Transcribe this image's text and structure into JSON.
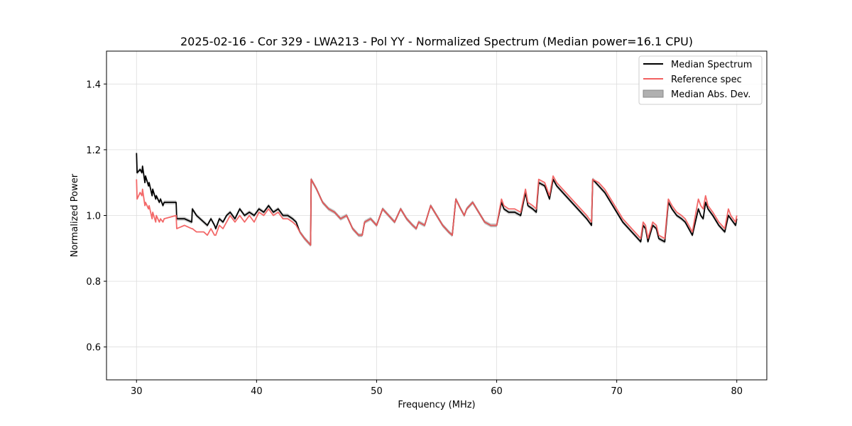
{
  "chart_data": {
    "type": "line",
    "title": "2025-02-16 - Cor 329 - LWA213 - Pol YY - Normalized Spectrum (Median power=16.1 CPU)",
    "xlabel": "Frequency (MHz)",
    "ylabel": "Normalized Power",
    "xlim": [
      27.5,
      82.5
    ],
    "ylim": [
      0.5,
      1.5
    ],
    "xticks": [
      30,
      40,
      50,
      60,
      70,
      80
    ],
    "xtick_labels": [
      "30",
      "40",
      "50",
      "60",
      "70",
      "80"
    ],
    "yticks": [
      0.6,
      0.8,
      1.0,
      1.2,
      1.4
    ],
    "ytick_labels": [
      "0.6",
      "0.8",
      "1.0",
      "1.2",
      "1.4"
    ],
    "grid": true,
    "legend_position": "top-right",
    "series": [
      {
        "name": "Median Spectrum",
        "color": "#000000",
        "x": [
          30.0,
          30.05,
          30.3,
          30.45,
          30.5,
          30.7,
          30.75,
          31.0,
          31.05,
          31.3,
          31.35,
          31.6,
          31.65,
          31.9,
          32.0,
          32.2,
          32.3,
          33.3,
          33.35,
          34.0,
          34.6,
          34.65,
          35.0,
          35.6,
          35.9,
          36.2,
          36.5,
          36.6,
          36.9,
          37.2,
          37.5,
          37.8,
          38.2,
          38.6,
          39.0,
          39.4,
          39.8,
          40.2,
          40.6,
          41.0,
          41.4,
          41.8,
          42.2,
          42.6,
          43.0,
          43.3,
          43.6,
          44.0,
          44.5,
          44.55,
          45.0,
          45.5,
          46.0,
          46.5,
          47.0,
          47.5,
          48.0,
          48.5,
          48.8,
          49.0,
          49.5,
          50.0,
          50.5,
          51.0,
          51.5,
          52.0,
          52.5,
          53.0,
          53.3,
          53.5,
          54.0,
          54.5,
          55.0,
          55.5,
          56.0,
          56.3,
          56.6,
          57.0,
          57.3,
          57.5,
          58.0,
          58.5,
          59.0,
          59.5,
          60.0,
          60.4,
          60.6,
          61.0,
          61.5,
          62.0,
          62.4,
          62.6,
          63.0,
          63.3,
          63.5,
          64.0,
          64.4,
          64.7,
          65.0,
          65.5,
          66.0,
          66.5,
          67.0,
          67.5,
          67.9,
          68.0,
          68.5,
          69.0,
          69.5,
          70.0,
          70.5,
          71.0,
          71.5,
          72.0,
          72.2,
          72.4,
          72.6,
          73.0,
          73.3,
          73.5,
          74.0,
          74.3,
          74.6,
          75.0,
          75.4,
          75.7,
          76.0,
          76.3,
          76.8,
          77.0,
          77.2,
          77.4,
          77.6,
          78.0,
          78.5,
          79.0,
          79.3,
          79.5,
          79.9,
          80.0
        ],
        "y": [
          1.19,
          1.13,
          1.14,
          1.13,
          1.15,
          1.1,
          1.12,
          1.09,
          1.1,
          1.06,
          1.08,
          1.05,
          1.06,
          1.04,
          1.05,
          1.03,
          1.04,
          1.04,
          0.99,
          0.99,
          0.98,
          1.02,
          1.0,
          0.98,
          0.97,
          0.99,
          0.97,
          0.96,
          0.99,
          0.98,
          1.0,
          1.01,
          0.99,
          1.02,
          1.0,
          1.01,
          1.0,
          1.02,
          1.01,
          1.03,
          1.01,
          1.02,
          1.0,
          1.0,
          0.99,
          0.98,
          0.95,
          0.93,
          0.91,
          1.11,
          1.08,
          1.04,
          1.02,
          1.01,
          0.99,
          1.0,
          0.96,
          0.94,
          0.94,
          0.98,
          0.99,
          0.97,
          1.02,
          1.0,
          0.98,
          1.02,
          0.99,
          0.97,
          0.96,
          0.98,
          0.97,
          1.03,
          1.0,
          0.97,
          0.95,
          0.94,
          1.05,
          1.02,
          1.0,
          1.02,
          1.04,
          1.01,
          0.98,
          0.97,
          0.97,
          1.04,
          1.02,
          1.01,
          1.01,
          1.0,
          1.07,
          1.03,
          1.02,
          1.01,
          1.1,
          1.09,
          1.05,
          1.11,
          1.09,
          1.07,
          1.05,
          1.03,
          1.01,
          0.99,
          0.97,
          1.11,
          1.09,
          1.07,
          1.04,
          1.01,
          0.98,
          0.96,
          0.94,
          0.92,
          0.97,
          0.96,
          0.92,
          0.97,
          0.96,
          0.93,
          0.92,
          1.04,
          1.02,
          1.0,
          0.99,
          0.98,
          0.96,
          0.94,
          1.02,
          1.0,
          0.99,
          1.04,
          1.02,
          1.0,
          0.97,
          0.95,
          1.0,
          0.99,
          0.97,
          0.99
        ]
      },
      {
        "name": "Reference spec",
        "color": "#f26060",
        "x": [
          30.0,
          30.05,
          30.3,
          30.45,
          30.5,
          30.7,
          30.75,
          31.0,
          31.05,
          31.3,
          31.35,
          31.6,
          31.65,
          31.9,
          32.0,
          32.2,
          32.3,
          33.3,
          33.35,
          34.0,
          34.6,
          34.65,
          35.0,
          35.6,
          35.9,
          36.2,
          36.5,
          36.6,
          36.9,
          37.2,
          37.5,
          37.8,
          38.2,
          38.6,
          39.0,
          39.4,
          39.8,
          40.2,
          40.6,
          41.0,
          41.4,
          41.8,
          42.2,
          42.6,
          43.0,
          43.3,
          43.6,
          44.0,
          44.5,
          44.55,
          45.0,
          45.5,
          46.0,
          46.5,
          47.0,
          47.5,
          48.0,
          48.5,
          48.8,
          49.0,
          49.5,
          50.0,
          50.5,
          51.0,
          51.5,
          52.0,
          52.5,
          53.0,
          53.3,
          53.5,
          54.0,
          54.5,
          55.0,
          55.5,
          56.0,
          56.3,
          56.6,
          57.0,
          57.3,
          57.5,
          58.0,
          58.5,
          59.0,
          59.5,
          60.0,
          60.4,
          60.6,
          61.0,
          61.5,
          62.0,
          62.4,
          62.6,
          63.0,
          63.3,
          63.5,
          64.0,
          64.4,
          64.7,
          65.0,
          65.5,
          66.0,
          66.5,
          67.0,
          67.5,
          67.9,
          68.0,
          68.5,
          69.0,
          69.5,
          70.0,
          70.5,
          71.0,
          71.5,
          72.0,
          72.2,
          72.4,
          72.6,
          73.0,
          73.3,
          73.5,
          74.0,
          74.3,
          74.6,
          75.0,
          75.4,
          75.7,
          76.0,
          76.3,
          76.8,
          77.0,
          77.2,
          77.4,
          77.6,
          78.0,
          78.5,
          79.0,
          79.3,
          79.5,
          79.9,
          80.0
        ],
        "y": [
          1.11,
          1.05,
          1.07,
          1.06,
          1.08,
          1.03,
          1.04,
          1.02,
          1.03,
          0.99,
          1.01,
          0.98,
          1.0,
          0.98,
          0.99,
          0.98,
          0.99,
          1.0,
          0.96,
          0.97,
          0.96,
          0.96,
          0.95,
          0.95,
          0.94,
          0.96,
          0.94,
          0.94,
          0.97,
          0.96,
          0.98,
          1.0,
          0.98,
          1.0,
          0.98,
          1.0,
          0.98,
          1.01,
          1.0,
          1.02,
          1.0,
          1.01,
          0.99,
          0.99,
          0.98,
          0.97,
          0.95,
          0.93,
          0.91,
          1.11,
          1.08,
          1.04,
          1.02,
          1.01,
          0.99,
          1.0,
          0.96,
          0.94,
          0.94,
          0.98,
          0.99,
          0.97,
          1.02,
          1.0,
          0.98,
          1.02,
          0.99,
          0.97,
          0.96,
          0.98,
          0.97,
          1.03,
          1.0,
          0.97,
          0.95,
          0.94,
          1.05,
          1.02,
          1.0,
          1.02,
          1.04,
          1.01,
          0.98,
          0.97,
          0.97,
          1.05,
          1.03,
          1.02,
          1.02,
          1.01,
          1.08,
          1.04,
          1.03,
          1.02,
          1.11,
          1.1,
          1.06,
          1.12,
          1.1,
          1.08,
          1.06,
          1.04,
          1.02,
          1.0,
          0.98,
          1.11,
          1.1,
          1.08,
          1.05,
          1.02,
          0.99,
          0.97,
          0.95,
          0.93,
          0.98,
          0.97,
          0.93,
          0.98,
          0.97,
          0.94,
          0.93,
          1.05,
          1.03,
          1.01,
          1.0,
          0.99,
          0.97,
          0.95,
          1.05,
          1.03,
          1.02,
          1.06,
          1.03,
          1.01,
          0.98,
          0.96,
          1.02,
          1.0,
          0.98,
          1.0
        ]
      }
    ],
    "band": {
      "name": "Median Abs. Dev.",
      "color": "#b0b0b0",
      "half_width": 0.006
    }
  }
}
